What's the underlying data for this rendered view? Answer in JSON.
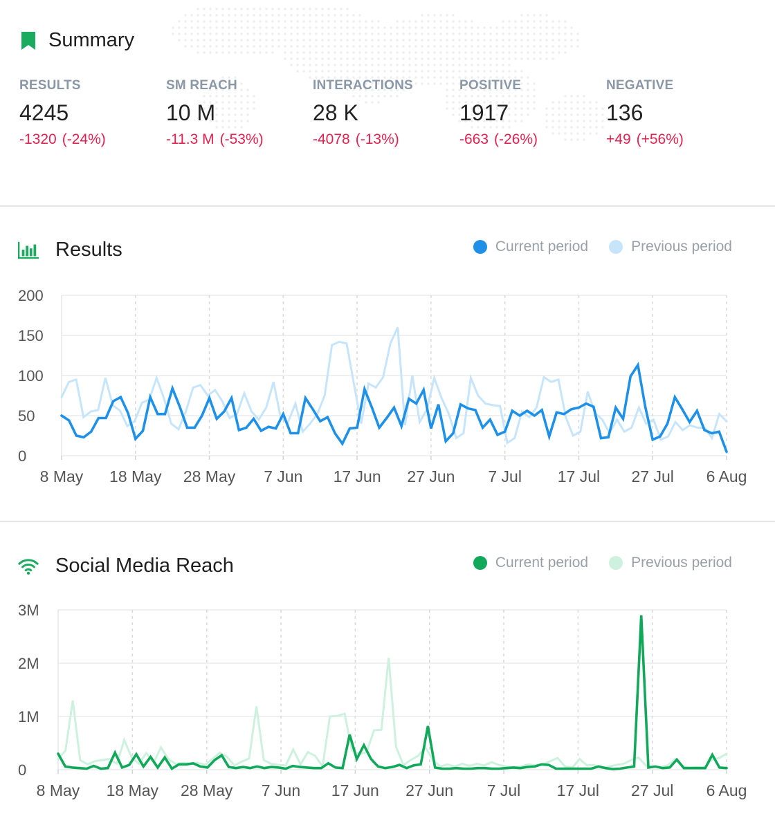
{
  "summary": {
    "title": "Summary",
    "icon": "bookmark-icon",
    "metrics": [
      {
        "label": "RESULTS",
        "value": "4245",
        "change": "-1320",
        "pct": "(-24%)"
      },
      {
        "label": "SM REACH",
        "value": "10 M",
        "change": "-11.3 M",
        "pct": "(-53%)"
      },
      {
        "label": "INTERACTIONS",
        "value": "28 K",
        "change": "-4078",
        "pct": "(-13%)"
      },
      {
        "label": "POSITIVE",
        "value": "1917",
        "change": "-663",
        "pct": "(-26%)"
      },
      {
        "label": "NEGATIVE",
        "value": "136",
        "change": "+49",
        "pct": "(+56%)"
      }
    ]
  },
  "colors": {
    "change": "#e2224f",
    "results_current": "#1e90e8",
    "results_previous": "#c6e4fa",
    "reach_current": "#12a85a",
    "reach_previous": "#cdf1de",
    "section_icon": "#1aab5f"
  },
  "results": {
    "title": "Results",
    "icon": "bar-chart-icon",
    "legend_current": "Current period",
    "legend_previous": "Previous period"
  },
  "reach": {
    "title": "Social Media Reach",
    "icon": "wifi-icon",
    "legend_current": "Current period",
    "legend_previous": "Previous period"
  },
  "chart_data": [
    {
      "type": "line",
      "title": "Results",
      "x_tick_labels": [
        "8 May",
        "18 May",
        "28 May",
        "7 Jun",
        "17 Jun",
        "27 Jun",
        "7 Jul",
        "17 Jul",
        "27 Jul",
        "6 Aug"
      ],
      "y_tick_labels": [
        "0",
        "50",
        "100",
        "150",
        "200"
      ],
      "ylim": [
        0,
        200
      ],
      "x_days": 90,
      "grid": true,
      "legend_placement": "top-right",
      "series": [
        {
          "name": "Current period",
          "values": [
            50,
            44,
            25,
            23,
            30,
            47,
            47,
            68,
            73,
            53,
            21,
            31,
            73,
            52,
            52,
            84,
            61,
            35,
            35,
            50,
            72,
            46,
            55,
            72,
            32,
            35,
            46,
            31,
            36,
            34,
            52,
            28,
            28,
            72,
            58,
            43,
            48,
            28,
            15,
            34,
            35,
            83,
            60,
            35,
            47,
            60,
            37,
            71,
            65,
            82,
            34,
            64,
            18,
            28,
            64,
            59,
            57,
            35,
            45,
            26,
            30,
            56,
            50,
            56,
            50,
            57,
            24,
            54,
            52,
            58,
            60,
            65,
            61,
            22,
            23,
            60,
            46,
            99,
            113,
            61,
            20,
            24,
            40,
            73,
            58,
            42,
            56,
            32,
            28,
            30,
            5
          ]
        },
        {
          "name": "Previous period",
          "values": [
            73,
            92,
            95,
            48,
            55,
            57,
            97,
            63,
            56,
            37,
            43,
            66,
            70,
            97,
            72,
            40,
            33,
            55,
            85,
            88,
            75,
            82,
            68,
            47,
            52,
            78,
            55,
            45,
            60,
            92,
            47,
            42,
            65,
            30,
            40,
            52,
            75,
            138,
            142,
            140,
            90,
            40,
            90,
            85,
            98,
            140,
            160,
            38,
            100,
            42,
            58,
            97,
            72,
            52,
            22,
            28,
            97,
            75,
            65,
            63,
            62,
            16,
            22,
            55,
            48,
            60,
            98,
            92,
            95,
            48,
            25,
            30,
            80,
            53,
            45,
            28,
            45,
            30,
            35,
            60,
            40,
            45,
            20,
            24,
            42,
            32,
            38,
            35,
            35,
            22,
            52,
            43
          ]
        }
      ]
    },
    {
      "type": "line",
      "title": "Social Media Reach",
      "x_tick_labels": [
        "8 May",
        "18 May",
        "28 May",
        "7 Jun",
        "17 Jun",
        "27 Jun",
        "7 Jul",
        "17 Jul",
        "27 Jul",
        "6 Aug"
      ],
      "y_tick_labels": [
        "0",
        "1M",
        "2M",
        "3M"
      ],
      "ylim": [
        0,
        3000000
      ],
      "x_days": 90,
      "grid": true,
      "legend_placement": "top-right",
      "series": [
        {
          "name": "Current period",
          "values": [
            300000,
            60000,
            40000,
            30000,
            20000,
            70000,
            20000,
            30000,
            320000,
            40000,
            90000,
            290000,
            60000,
            240000,
            40000,
            230000,
            20000,
            100000,
            100000,
            120000,
            60000,
            40000,
            180000,
            270000,
            50000,
            30000,
            50000,
            30000,
            60000,
            30000,
            50000,
            40000,
            20000,
            70000,
            50000,
            40000,
            30000,
            30000,
            120000,
            40000,
            30000,
            660000,
            200000,
            460000,
            200000,
            60000,
            30000,
            50000,
            90000,
            30000,
            80000,
            100000,
            820000,
            40000,
            20000,
            20000,
            30000,
            20000,
            20000,
            30000,
            30000,
            20000,
            20000,
            30000,
            40000,
            30000,
            50000,
            60000,
            100000,
            90000,
            20000,
            20000,
            20000,
            20000,
            20000,
            20000,
            60000,
            30000,
            10000,
            20000,
            40000,
            60000,
            2900000,
            40000,
            60000,
            30000,
            40000,
            190000,
            30000,
            30000,
            30000,
            30000,
            280000,
            40000,
            30000
          ]
        },
        {
          "name": "Previous period",
          "values": [
            200000,
            360000,
            1300000,
            180000,
            100000,
            160000,
            180000,
            200000,
            110000,
            560000,
            230000,
            110000,
            310000,
            130000,
            420000,
            200000,
            110000,
            130000,
            110000,
            130000,
            90000,
            200000,
            320000,
            240000,
            80000,
            150000,
            210000,
            1190000,
            180000,
            110000,
            90000,
            80000,
            380000,
            100000,
            330000,
            260000,
            60000,
            1000000,
            1010000,
            1050000,
            360000,
            290000,
            330000,
            740000,
            750000,
            2100000,
            430000,
            90000,
            180000,
            260000,
            420000,
            190000,
            60000,
            100000,
            60000,
            110000,
            70000,
            110000,
            80000,
            140000,
            90000,
            60000,
            40000,
            60000,
            100000,
            80000,
            100000,
            160000,
            220000,
            60000,
            40000,
            200000,
            80000,
            90000,
            30000,
            60000,
            90000,
            110000,
            180000,
            230000,
            80000,
            50000,
            50000,
            80000,
            200000,
            60000,
            40000,
            50000,
            40000,
            190000,
            220000,
            300000
          ]
        }
      ]
    }
  ]
}
